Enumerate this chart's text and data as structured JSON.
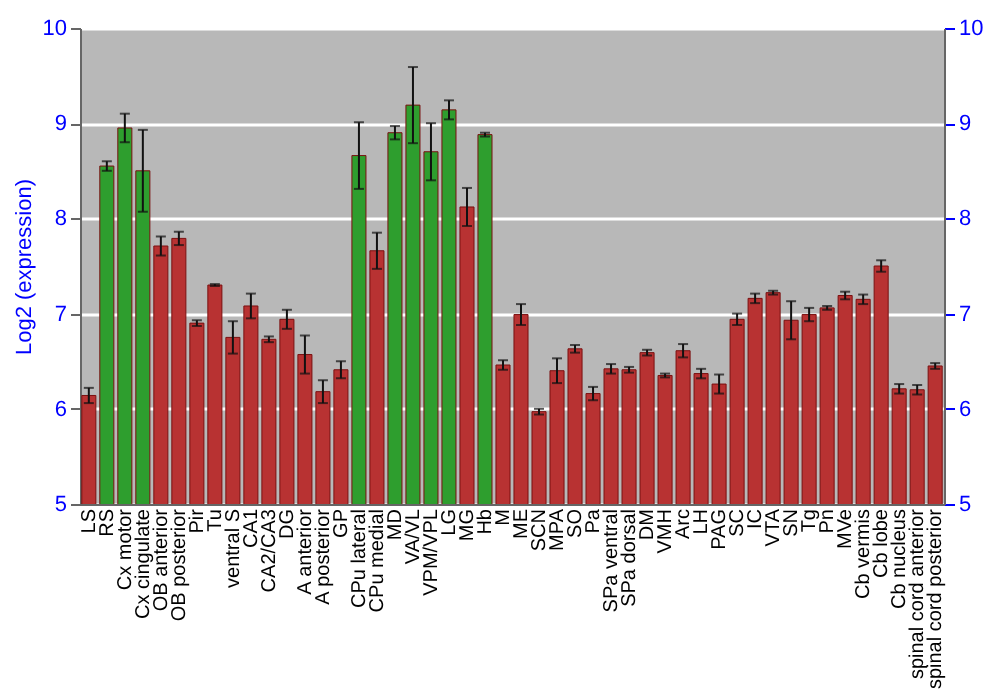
{
  "chart_data": {
    "type": "bar",
    "ylabel": "Log2 (expression)",
    "categories": [
      "LS",
      "RS",
      "Cx motor",
      "Cx cingulate",
      "OB anterior",
      "OB posterior",
      "Pir",
      "Tu",
      "ventral S",
      "CA1",
      "CA2/CA3",
      "DG",
      "A anterior",
      "A posterior",
      "GP",
      "CPu lateral",
      "CPu medial",
      "MD",
      "VA/VL",
      "VPM/VPL",
      "LG",
      "MG",
      "Hb",
      "M",
      "ME",
      "SCN",
      "MPA",
      "SO",
      "Pa",
      "SPa ventral",
      "SPa dorsal",
      "DM",
      "VMH",
      "Arc",
      "LH",
      "PAG",
      "SC",
      "IC",
      "VTA",
      "SN",
      "Tg",
      "Pn",
      "MVe",
      "Cb vermis",
      "Cb lobe",
      "Cb nucleus",
      "spinal cord anterior",
      "spinal cord posterior"
    ],
    "values": [
      6.14,
      8.55,
      8.95,
      8.5,
      7.71,
      7.79,
      6.9,
      7.3,
      6.75,
      7.08,
      6.73,
      6.94,
      6.57,
      6.18,
      6.41,
      8.66,
      7.66,
      8.9,
      9.19,
      8.7,
      9.14,
      8.12,
      8.88,
      6.46,
      6.99,
      5.97,
      6.4,
      6.63,
      6.16,
      6.42,
      6.41,
      6.59,
      6.35,
      6.61,
      6.37,
      6.26,
      6.94,
      7.16,
      7.22,
      6.93,
      6.99,
      7.06,
      7.19,
      7.15,
      7.5,
      6.21,
      6.2,
      6.45
    ],
    "errors": [
      0.08,
      0.05,
      0.15,
      0.43,
      0.1,
      0.07,
      0.03,
      0.01,
      0.17,
      0.13,
      0.03,
      0.1,
      0.2,
      0.12,
      0.09,
      0.35,
      0.19,
      0.07,
      0.4,
      0.3,
      0.1,
      0.2,
      0.02,
      0.05,
      0.11,
      0.03,
      0.13,
      0.04,
      0.07,
      0.05,
      0.03,
      0.03,
      0.02,
      0.07,
      0.05,
      0.1,
      0.06,
      0.05,
      0.02,
      0.2,
      0.07,
      0.02,
      0.04,
      0.05,
      0.06,
      0.05,
      0.05,
      0.03
    ],
    "colors": [
      "#b83232",
      "#2e9e2e",
      "#2e9e2e",
      "#2e9e2e",
      "#b83232",
      "#b83232",
      "#b83232",
      "#b83232",
      "#b83232",
      "#b83232",
      "#b83232",
      "#b83232",
      "#b83232",
      "#b83232",
      "#b83232",
      "#2e9e2e",
      "#b83232",
      "#2e9e2e",
      "#2e9e2e",
      "#2e9e2e",
      "#2e9e2e",
      "#b83232",
      "#2e9e2e",
      "#b83232",
      "#b83232",
      "#b83232",
      "#b83232",
      "#b83232",
      "#b83232",
      "#b83232",
      "#b83232",
      "#b83232",
      "#b83232",
      "#b83232",
      "#b83232",
      "#b83232",
      "#b83232",
      "#b83232",
      "#b83232",
      "#b83232",
      "#b83232",
      "#b83232",
      "#b83232",
      "#b83232",
      "#b83232",
      "#b83232",
      "#b83232",
      "#b83232"
    ],
    "ylim": [
      5,
      10
    ],
    "yticks": [
      5,
      6,
      7,
      8,
      9,
      10
    ],
    "y2lim": [
      5,
      10
    ],
    "y2ticks": [
      5,
      6,
      7,
      8,
      9,
      10
    ],
    "grid": "y"
  }
}
